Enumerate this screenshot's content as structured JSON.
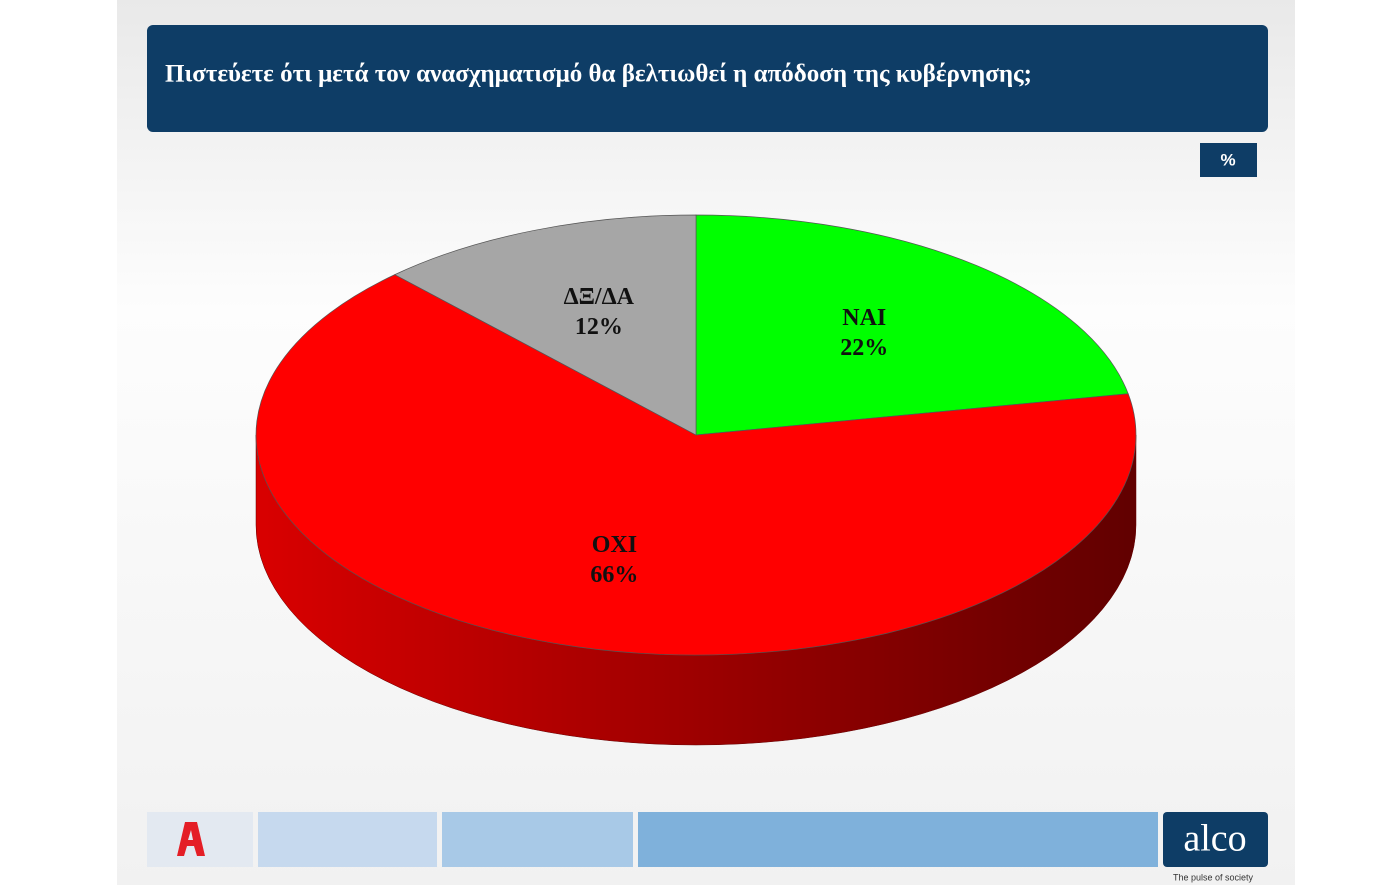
{
  "chart_data": {
    "type": "pie3d",
    "title": "Πιστεύετε ότι μετά τον ανασχηματισμό θα βελτιωθεί η απόδοση της κυβέρνησης;",
    "unit_label": "%",
    "categories": [
      "ΝΑΙ",
      "ΟΧΙ",
      "ΔΞ/ΔΑ"
    ],
    "values": [
      22,
      66,
      12
    ],
    "value_labels": [
      "22%",
      "66%",
      "12%"
    ],
    "colors": [
      "#00ff00",
      "#ff0000",
      "#a6a6a6"
    ]
  },
  "footer": {
    "brand": "alco",
    "tagline": "The pulse of society"
  }
}
